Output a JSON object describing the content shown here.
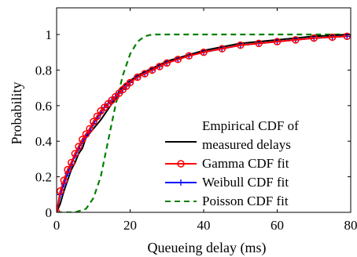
{
  "chart_data": {
    "type": "line",
    "xlabel": "Queueing delay (ms)",
    "ylabel": "Probability",
    "xlim": [
      0,
      80
    ],
    "ylim": [
      0,
      1.15
    ],
    "xticks": [
      0,
      20,
      40,
      60,
      80
    ],
    "yticks": [
      0,
      0.2,
      0.4,
      0.6,
      0.8,
      1
    ],
    "xtick_labels": [
      "0",
      "20",
      "40",
      "60",
      "80"
    ],
    "ytick_labels": [
      "0",
      "0.2",
      "0.4",
      "0.6",
      "0.8",
      "1"
    ],
    "grid": false,
    "legend_position": "bottom-right",
    "legend_entries": [
      "Empirical CDF of measured delays",
      "Gamma CDF fit",
      "Weibull CDF fit",
      "Poisson CDF fit"
    ],
    "series": [
      {
        "name": "Empirical CDF of measured delays",
        "color": "#000000",
        "line_style": "solid",
        "marker": "none",
        "x": [
          0,
          1,
          2,
          3,
          4,
          5,
          6,
          7,
          8,
          10,
          12,
          14,
          16,
          17,
          18,
          20,
          22,
          24,
          26,
          28,
          30,
          35,
          40,
          45,
          50,
          55,
          60,
          65,
          70,
          75,
          79
        ],
        "y": [
          0,
          0.05,
          0.12,
          0.18,
          0.24,
          0.28,
          0.33,
          0.36,
          0.42,
          0.47,
          0.52,
          0.58,
          0.64,
          0.68,
          0.71,
          0.74,
          0.77,
          0.79,
          0.81,
          0.83,
          0.85,
          0.88,
          0.91,
          0.93,
          0.95,
          0.96,
          0.97,
          0.98,
          0.99,
          0.995,
          1.0
        ]
      },
      {
        "name": "Gamma CDF fit",
        "color": "#ff0000",
        "line_style": "solid",
        "marker": "circle",
        "x": [
          0,
          1,
          2,
          3,
          4,
          5,
          6,
          7,
          8,
          9,
          10,
          11,
          12,
          13,
          14,
          15,
          16,
          17,
          18,
          19,
          20,
          22,
          24,
          26,
          28,
          30,
          33,
          36,
          40,
          45,
          50,
          55,
          60,
          65,
          70,
          75,
          79
        ],
        "y": [
          0,
          0.12,
          0.18,
          0.24,
          0.28,
          0.33,
          0.37,
          0.41,
          0.44,
          0.47,
          0.51,
          0.54,
          0.57,
          0.59,
          0.61,
          0.63,
          0.65,
          0.67,
          0.69,
          0.71,
          0.73,
          0.76,
          0.78,
          0.8,
          0.82,
          0.84,
          0.86,
          0.88,
          0.9,
          0.92,
          0.94,
          0.95,
          0.96,
          0.97,
          0.98,
          0.985,
          0.99
        ]
      },
      {
        "name": "Weibull CDF fit",
        "color": "#0000ff",
        "line_style": "solid",
        "marker": "plus",
        "x": [
          0,
          1,
          2,
          3,
          4,
          5,
          6,
          7,
          8,
          9,
          10,
          11,
          12,
          13,
          14,
          15,
          16,
          17,
          18,
          19,
          20,
          22,
          24,
          26,
          28,
          30,
          33,
          36,
          40,
          45,
          50,
          55,
          60,
          65,
          70,
          75,
          79
        ],
        "y": [
          0,
          0.1,
          0.16,
          0.22,
          0.27,
          0.32,
          0.36,
          0.4,
          0.43,
          0.46,
          0.5,
          0.53,
          0.56,
          0.59,
          0.61,
          0.63,
          0.65,
          0.67,
          0.69,
          0.71,
          0.73,
          0.76,
          0.78,
          0.8,
          0.82,
          0.84,
          0.86,
          0.88,
          0.9,
          0.92,
          0.94,
          0.95,
          0.96,
          0.97,
          0.98,
          0.985,
          0.99
        ]
      },
      {
        "name": "Poisson CDF fit",
        "color": "#008000",
        "line_style": "dashed",
        "marker": "none",
        "x": [
          0,
          5,
          8,
          10,
          12,
          14,
          16,
          18,
          20,
          22,
          24,
          26,
          28,
          30,
          40,
          60,
          80
        ],
        "y": [
          0,
          0.0,
          0.02,
          0.08,
          0.2,
          0.4,
          0.6,
          0.77,
          0.89,
          0.96,
          0.99,
          1.0,
          1.0,
          1.0,
          1.0,
          1.0,
          1.0
        ]
      }
    ]
  }
}
